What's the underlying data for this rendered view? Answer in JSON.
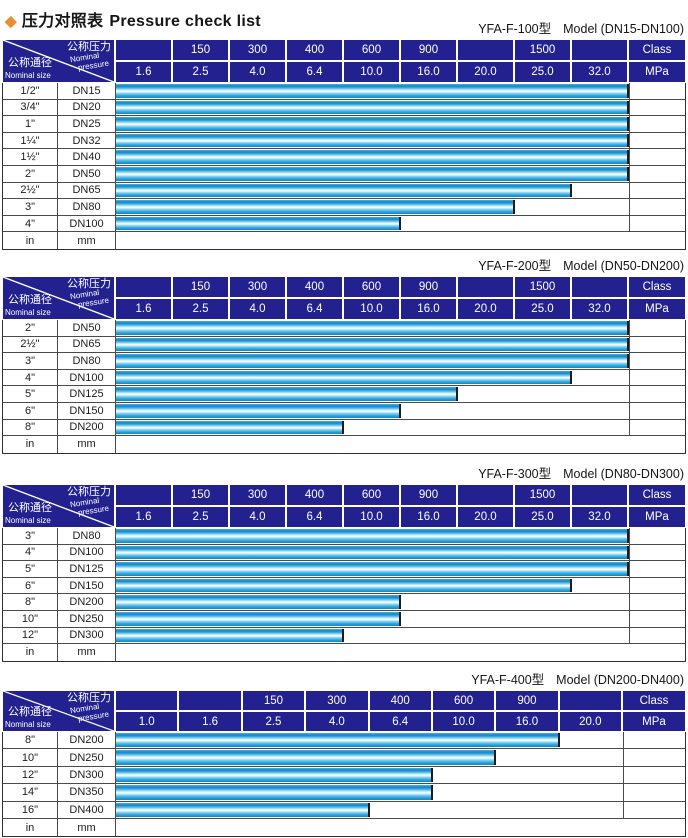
{
  "page": {
    "title_zh": "压力对照表",
    "title_en": "Pressure check list",
    "diamond_icon": "diamond-bullet",
    "accent_color": "#ec8c2f",
    "header_bg_color": "#22218f",
    "bar_color": "#2da5dd"
  },
  "header_labels": {
    "nominal_pressure_zh": "公称压力",
    "nominal_pressure_en1": "Nominal",
    "nominal_pressure_en2": "pressure",
    "nominal_size_zh": "公称通径",
    "nominal_size_en": "Nominal size"
  },
  "tables": [
    {
      "model": "YFA-F-100型",
      "range": "Model (DN15-DN100)",
      "class_row": [
        "",
        "150",
        "300",
        "400",
        "600",
        "900",
        "",
        "1500",
        "",
        "Class"
      ],
      "mpa_row": [
        "1.6",
        "2.5",
        "4.0",
        "6.4",
        "10.0",
        "16.0",
        "20.0",
        "25.0",
        "32.0",
        "MPa"
      ],
      "unit_row": {
        "size": "in",
        "dn": "mm"
      },
      "rows": [
        {
          "size": "1/2\"",
          "dn": "DN15",
          "cols": 9
        },
        {
          "size": "3/4\"",
          "dn": "DN20",
          "cols": 9
        },
        {
          "size": "1\"",
          "dn": "DN25",
          "cols": 9
        },
        {
          "size": "1¼\"",
          "dn": "DN32",
          "cols": 9
        },
        {
          "size": "1½\"",
          "dn": "DN40",
          "cols": 9
        },
        {
          "size": "2\"",
          "dn": "DN50",
          "cols": 9
        },
        {
          "size": "2½\"",
          "dn": "DN65",
          "cols": 8
        },
        {
          "size": "3\"",
          "dn": "DN80",
          "cols": 7
        },
        {
          "size": "4\"",
          "dn": "DN100",
          "cols": 5
        }
      ]
    },
    {
      "model": "YFA-F-200型",
      "range": "Model (DN50-DN200)",
      "class_row": [
        "",
        "150",
        "300",
        "400",
        "600",
        "900",
        "",
        "1500",
        "",
        "Class"
      ],
      "mpa_row": [
        "1.6",
        "2.5",
        "4.0",
        "6.4",
        "10.0",
        "16.0",
        "20.0",
        "25.0",
        "32.0",
        "MPa"
      ],
      "unit_row": {
        "size": "in",
        "dn": "mm"
      },
      "rows": [
        {
          "size": "2\"",
          "dn": "DN50",
          "cols": 9
        },
        {
          "size": "2½\"",
          "dn": "DN65",
          "cols": 9
        },
        {
          "size": "3\"",
          "dn": "DN80",
          "cols": 9
        },
        {
          "size": "4\"",
          "dn": "DN100",
          "cols": 8
        },
        {
          "size": "5\"",
          "dn": "DN125",
          "cols": 6
        },
        {
          "size": "6\"",
          "dn": "DN150",
          "cols": 5
        },
        {
          "size": "8\"",
          "dn": "DN200",
          "cols": 4
        }
      ]
    },
    {
      "model": "YFA-F-300型",
      "range": "Model (DN80-DN300)",
      "class_row": [
        "",
        "150",
        "300",
        "400",
        "600",
        "900",
        "",
        "1500",
        "",
        "Class"
      ],
      "mpa_row": [
        "1.6",
        "2.5",
        "4.0",
        "6.4",
        "10.0",
        "16.0",
        "20.0",
        "25.0",
        "32.0",
        "MPa"
      ],
      "unit_row": {
        "size": "in",
        "dn": "mm"
      },
      "rows": [
        {
          "size": "3\"",
          "dn": "DN80",
          "cols": 9
        },
        {
          "size": "4\"",
          "dn": "DN100",
          "cols": 9
        },
        {
          "size": "5\"",
          "dn": "DN125",
          "cols": 9
        },
        {
          "size": "6\"",
          "dn": "DN150",
          "cols": 8
        },
        {
          "size": "8\"",
          "dn": "DN200",
          "cols": 5
        },
        {
          "size": "10\"",
          "dn": "DN250",
          "cols": 5
        },
        {
          "size": "12\"",
          "dn": "DN300",
          "cols": 4
        }
      ]
    },
    {
      "model": "YFA-F-400型",
      "range": "Model (DN200-DN400)",
      "class_row": [
        "",
        "",
        "150",
        "300",
        "400",
        "600",
        "900",
        "",
        "Class"
      ],
      "mpa_row": [
        "1.0",
        "1.6",
        "2.5",
        "4.0",
        "6.4",
        "10.0",
        "16.0",
        "20.0",
        "MPa"
      ],
      "unit_row": {
        "size": "in",
        "dn": "mm"
      },
      "rows": [
        {
          "size": "8\"",
          "dn": "DN200",
          "cols": 7
        },
        {
          "size": "10\"",
          "dn": "DN250",
          "cols": 6
        },
        {
          "size": "12\"",
          "dn": "DN300",
          "cols": 5
        },
        {
          "size": "14\"",
          "dn": "DN350",
          "cols": 5
        },
        {
          "size": "16\"",
          "dn": "DN400",
          "cols": 4
        }
      ]
    }
  ],
  "chart_data": [
    {
      "type": "bar",
      "orientation": "horizontal",
      "title": "YFA-F-100型 Model (DN15-DN100)",
      "categories": [
        "DN15",
        "DN20",
        "DN25",
        "DN32",
        "DN40",
        "DN50",
        "DN65",
        "DN80",
        "DN100"
      ],
      "values": [
        32.0,
        32.0,
        32.0,
        32.0,
        32.0,
        32.0,
        25.0,
        20.0,
        10.0
      ],
      "xlabel": "Nominal pressure (MPa)",
      "ylabel": "Nominal size",
      "x_ticks_mpa": [
        1.6,
        2.5,
        4.0,
        6.4,
        10.0,
        16.0,
        20.0,
        25.0,
        32.0
      ],
      "x_ticks_class": [
        150,
        300,
        400,
        600,
        900,
        1500
      ],
      "legend": "off",
      "grid": "off"
    },
    {
      "type": "bar",
      "orientation": "horizontal",
      "title": "YFA-F-200型 Model (DN50-DN200)",
      "categories": [
        "DN50",
        "DN65",
        "DN80",
        "DN100",
        "DN125",
        "DN150",
        "DN200"
      ],
      "values": [
        32.0,
        32.0,
        32.0,
        25.0,
        16.0,
        10.0,
        6.4
      ],
      "xlabel": "Nominal pressure (MPa)",
      "ylabel": "Nominal size",
      "x_ticks_mpa": [
        1.6,
        2.5,
        4.0,
        6.4,
        10.0,
        16.0,
        20.0,
        25.0,
        32.0
      ],
      "x_ticks_class": [
        150,
        300,
        400,
        600,
        900,
        1500
      ],
      "legend": "off",
      "grid": "off"
    },
    {
      "type": "bar",
      "orientation": "horizontal",
      "title": "YFA-F-300型 Model (DN80-DN300)",
      "categories": [
        "DN80",
        "DN100",
        "DN125",
        "DN150",
        "DN200",
        "DN250",
        "DN300"
      ],
      "values": [
        32.0,
        32.0,
        32.0,
        25.0,
        10.0,
        10.0,
        6.4
      ],
      "xlabel": "Nominal pressure (MPa)",
      "ylabel": "Nominal size",
      "x_ticks_mpa": [
        1.6,
        2.5,
        4.0,
        6.4,
        10.0,
        16.0,
        20.0,
        25.0,
        32.0
      ],
      "x_ticks_class": [
        150,
        300,
        400,
        600,
        900,
        1500
      ],
      "legend": "off",
      "grid": "off"
    },
    {
      "type": "bar",
      "orientation": "horizontal",
      "title": "YFA-F-400型 Model (DN200-DN400)",
      "categories": [
        "DN200",
        "DN250",
        "DN300",
        "DN350",
        "DN400"
      ],
      "values": [
        16.0,
        10.0,
        6.4,
        6.4,
        4.0
      ],
      "xlabel": "Nominal pressure (MPa)",
      "ylabel": "Nominal size",
      "x_ticks_mpa": [
        1.0,
        1.6,
        2.5,
        4.0,
        6.4,
        10.0,
        16.0,
        20.0
      ],
      "x_ticks_class": [
        150,
        300,
        400,
        600,
        900
      ],
      "legend": "off",
      "grid": "off"
    }
  ]
}
